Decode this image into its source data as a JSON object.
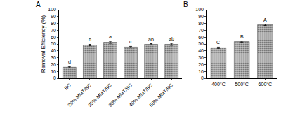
{
  "chart_data": [
    {
      "type": "bar",
      "panel": "A",
      "ylabel": "Removal Efficiency (%)",
      "categories": [
        "BC",
        "20%-MMT/BC",
        "25%-MMT/BC",
        "30%-MMT/BC",
        "40%-MMT/BC",
        "50%-MMT/BC"
      ],
      "values": [
        16,
        48.5,
        52.5,
        45.5,
        49.5,
        49.5
      ],
      "errors": [
        1,
        1,
        1.5,
        1,
        1,
        1.5
      ],
      "letters": [
        "d",
        "b",
        "a",
        "c",
        "ab",
        "ab"
      ],
      "color": "#c8c8c8",
      "ylim": [
        0,
        100
      ],
      "yticks": [
        0,
        10,
        20,
        30,
        40,
        50,
        60,
        70,
        80,
        90,
        100
      ],
      "grid": false
    },
    {
      "type": "bar",
      "panel": "B",
      "categories": [
        "400°C",
        "500°C",
        "600°C"
      ],
      "values": [
        44.5,
        53.5,
        78
      ],
      "errors": [
        1,
        0.8,
        1
      ],
      "letters": [
        "C",
        "B",
        "A"
      ],
      "color": "#c8c8c8",
      "ylim": [
        0,
        100
      ],
      "yticks": [
        0,
        10,
        20,
        30,
        40,
        50,
        60,
        70,
        80,
        90,
        100
      ],
      "grid": false
    }
  ]
}
